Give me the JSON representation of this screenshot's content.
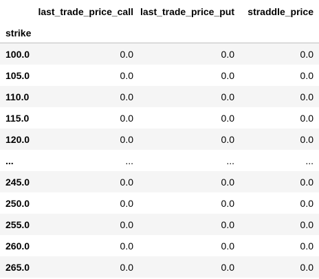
{
  "dataframe": {
    "columns": [
      "last_trade_price_call",
      "last_trade_price_put",
      "straddle_price"
    ],
    "index_name": "strike",
    "rows": [
      {
        "index": "100.0",
        "values": [
          "0.0",
          "0.0",
          "0.0"
        ]
      },
      {
        "index": "105.0",
        "values": [
          "0.0",
          "0.0",
          "0.0"
        ]
      },
      {
        "index": "110.0",
        "values": [
          "0.0",
          "0.0",
          "0.0"
        ]
      },
      {
        "index": "115.0",
        "values": [
          "0.0",
          "0.0",
          "0.0"
        ]
      },
      {
        "index": "120.0",
        "values": [
          "0.0",
          "0.0",
          "0.0"
        ]
      },
      {
        "index": "...",
        "values": [
          "...",
          "...",
          "..."
        ]
      },
      {
        "index": "245.0",
        "values": [
          "0.0",
          "0.0",
          "0.0"
        ]
      },
      {
        "index": "250.0",
        "values": [
          "0.0",
          "0.0",
          "0.0"
        ]
      },
      {
        "index": "255.0",
        "values": [
          "0.0",
          "0.0",
          "0.0"
        ]
      },
      {
        "index": "260.0",
        "values": [
          "0.0",
          "0.0",
          "0.0"
        ]
      },
      {
        "index": "265.0",
        "values": [
          "0.0",
          "0.0",
          "0.0"
        ]
      }
    ]
  }
}
